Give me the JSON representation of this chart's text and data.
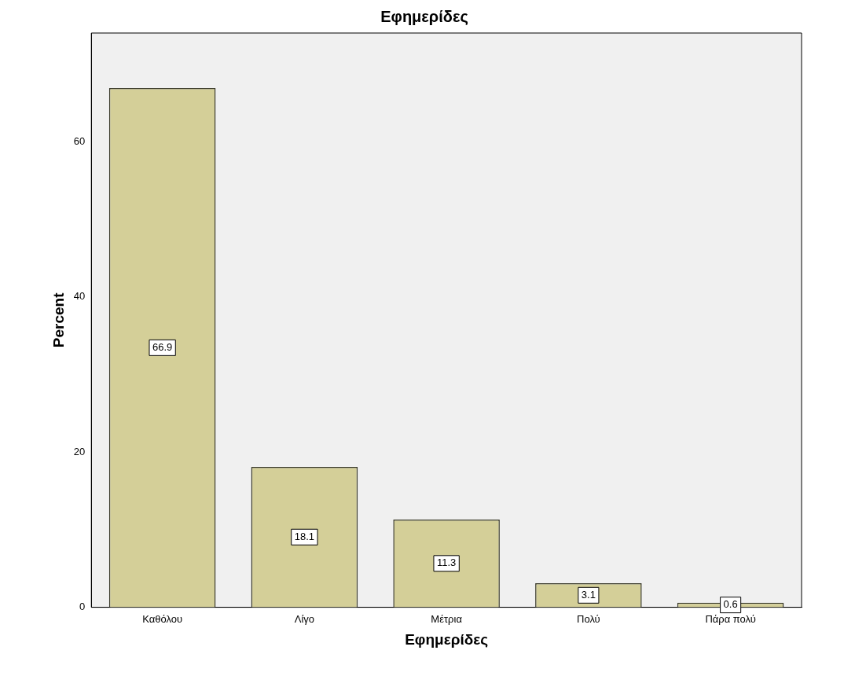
{
  "chart_data": {
    "type": "bar",
    "title": "Εφημερίδες",
    "xlabel": "Εφημερίδες",
    "ylabel": "Percent",
    "categories": [
      "Καθόλου",
      "Λίγο",
      "Μέτρια",
      "Πολύ",
      "Πάρα πολύ"
    ],
    "values": [
      66.9,
      18.1,
      11.3,
      3.1,
      0.6
    ],
    "color": "#d4cf98",
    "ylim": [
      0,
      74
    ],
    "yticks": [
      0,
      20,
      40,
      60
    ],
    "grid": false,
    "legend": false,
    "data_labels": true
  }
}
